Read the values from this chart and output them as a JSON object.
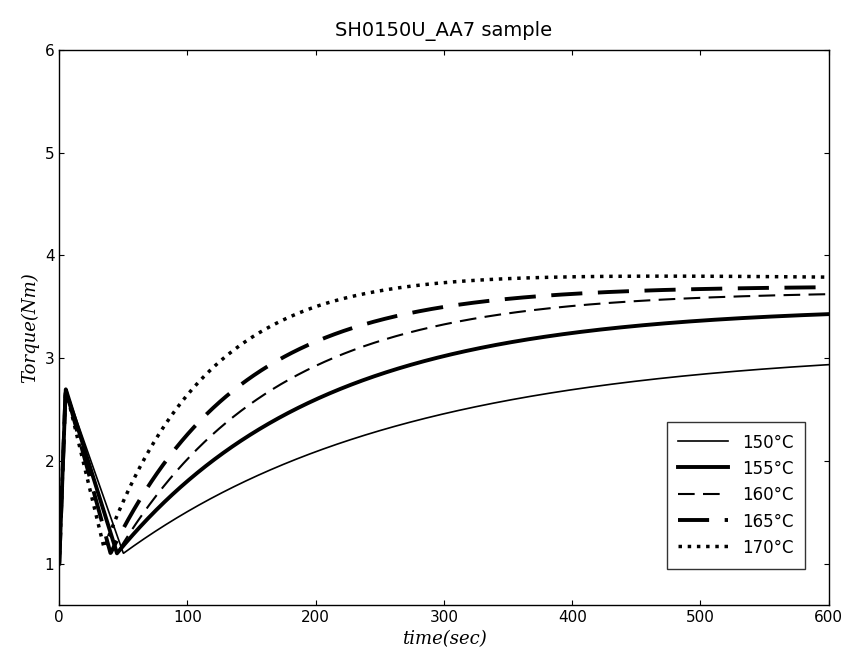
{
  "title": "SH0150U_AA7 sample",
  "xlabel": "time(sec)",
  "ylabel": "Torque(Nm)",
  "xlim": [
    0,
    600
  ],
  "ylim": [
    0.6,
    6
  ],
  "yticks": [
    1,
    2,
    3,
    4,
    5,
    6
  ],
  "xticks": [
    0,
    100,
    200,
    300,
    400,
    500,
    600
  ],
  "curves": {
    "150": {
      "style": "solid",
      "linewidth": 1.2,
      "color": "#000000"
    },
    "155": {
      "style": "solid",
      "linewidth": 2.8,
      "color": "#000000"
    },
    "160": {
      "style": "dashed",
      "linewidth": 1.5,
      "color": "#000000"
    },
    "165": {
      "style": "dashed",
      "linewidth": 2.8,
      "color": "#000000"
    },
    "170": {
      "style": "dotted",
      "linewidth": 2.5,
      "color": "#000000"
    }
  },
  "legend_labels": [
    "150°C",
    "155°C",
    "160°C",
    "165°C",
    "170°C"
  ],
  "background_color": "#ffffff",
  "title_fontsize": 14,
  "label_fontsize": 13,
  "tick_fontsize": 11,
  "legend_fontsize": 12
}
